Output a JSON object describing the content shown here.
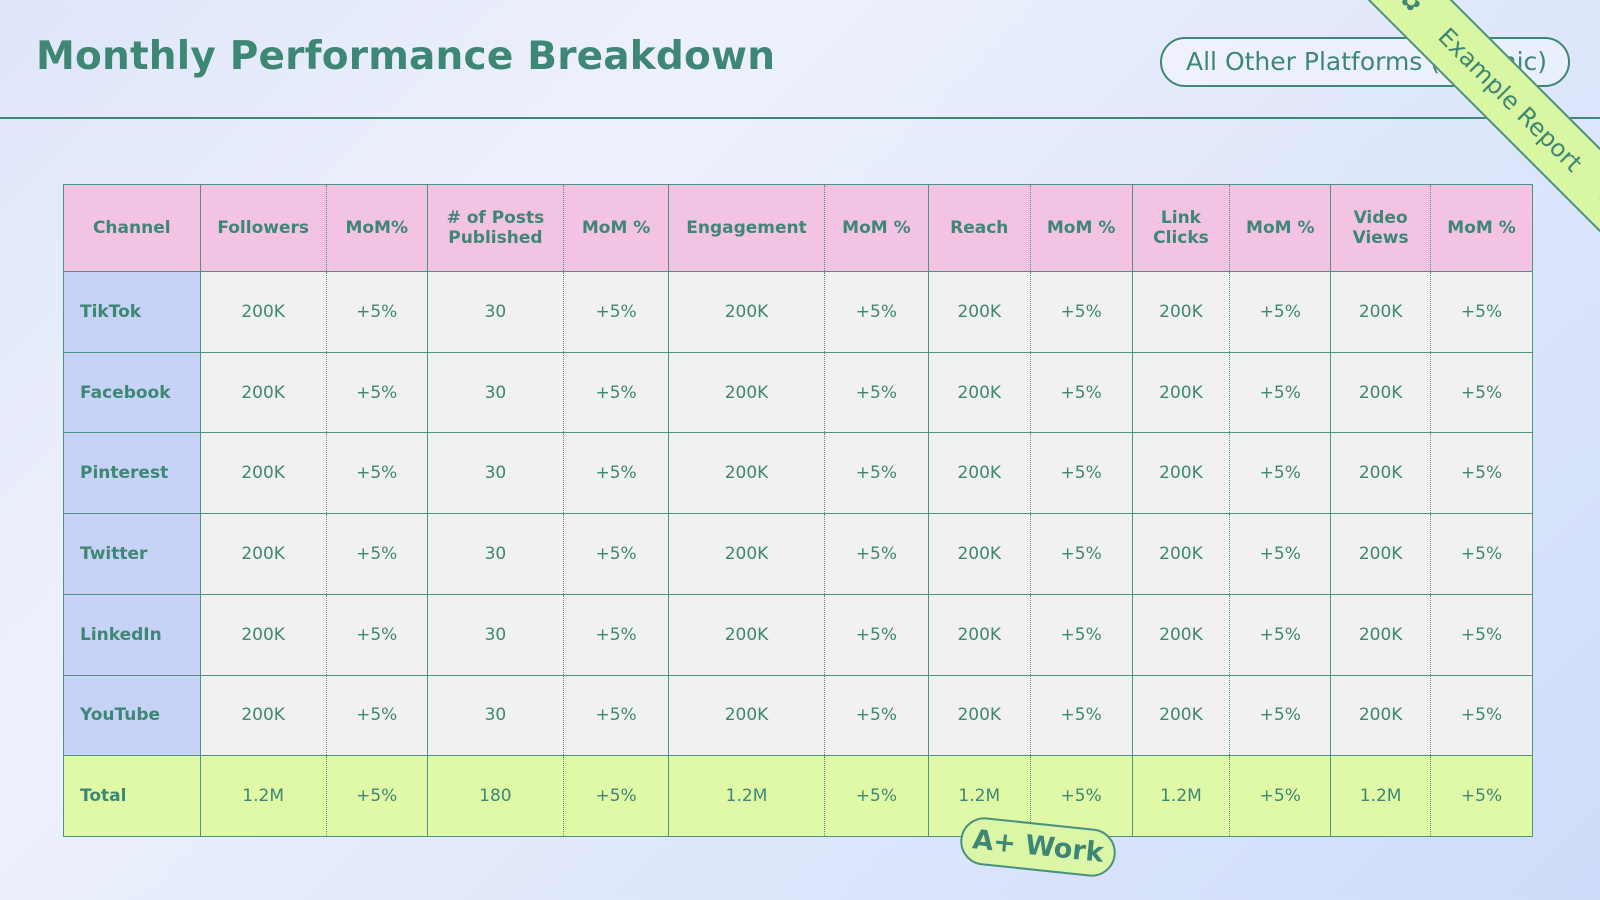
{
  "header": {
    "title": "Monthly Performance Breakdown",
    "filter_label": "All Other Platforms (Organic)"
  },
  "ribbon": {
    "label": "Example Report",
    "icon": "gear-icon"
  },
  "badge": {
    "label": "A+ Work"
  },
  "table": {
    "columns": [
      "Channel",
      "Followers",
      "MoM%",
      "# of Posts Published",
      "MoM %",
      "Engagement",
      "MoM %",
      "Reach",
      "MoM %",
      "Link Clicks",
      "MoM %",
      "Video Views",
      "MoM %"
    ],
    "rows": [
      {
        "channel": "TikTok",
        "values": [
          "200K",
          "+5%",
          "30",
          "+5%",
          "200K",
          "+5%",
          "200K",
          "+5%",
          "200K",
          "+5%",
          "200K",
          "+5%"
        ]
      },
      {
        "channel": "Facebook",
        "values": [
          "200K",
          "+5%",
          "30",
          "+5%",
          "200K",
          "+5%",
          "200K",
          "+5%",
          "200K",
          "+5%",
          "200K",
          "+5%"
        ]
      },
      {
        "channel": "Pinterest",
        "values": [
          "200K",
          "+5%",
          "30",
          "+5%",
          "200K",
          "+5%",
          "200K",
          "+5%",
          "200K",
          "+5%",
          "200K",
          "+5%"
        ]
      },
      {
        "channel": "Twitter",
        "values": [
          "200K",
          "+5%",
          "30",
          "+5%",
          "200K",
          "+5%",
          "200K",
          "+5%",
          "200K",
          "+5%",
          "200K",
          "+5%"
        ]
      },
      {
        "channel": "LinkedIn",
        "values": [
          "200K",
          "+5%",
          "30",
          "+5%",
          "200K",
          "+5%",
          "200K",
          "+5%",
          "200K",
          "+5%",
          "200K",
          "+5%"
        ]
      },
      {
        "channel": "YouTube",
        "values": [
          "200K",
          "+5%",
          "30",
          "+5%",
          "200K",
          "+5%",
          "200K",
          "+5%",
          "200K",
          "+5%",
          "200K",
          "+5%"
        ]
      }
    ],
    "total": {
      "channel": "Total",
      "values": [
        "1.2M",
        "+5%",
        "180",
        "+5%",
        "1.2M",
        "+5%",
        "1.2M",
        "+5%",
        "1.2M",
        "+5%",
        "1.2M",
        "+5%"
      ]
    }
  },
  "colors": {
    "accent": "#3e8774",
    "header_bg": "#f2c3e2",
    "channel_bg": "#c6d2f6",
    "total_bg": "#dff9a6"
  }
}
